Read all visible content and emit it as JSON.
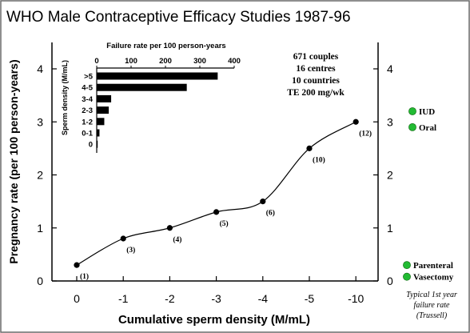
{
  "chart_data": {
    "title": "WHO Male Contraceptive Efficacy Studies 1987-96",
    "main": {
      "type": "line",
      "xlabel": "Cumulative sperm density (M/mL)",
      "ylabel": "Pregnancy rate (per 100 person-years)",
      "x_ticks": [
        "0",
        "-1",
        "-2",
        "-3",
        "-4",
        "-5",
        "-10"
      ],
      "ylim": [
        0,
        4
      ],
      "y_ticks": [
        0,
        1,
        2,
        3,
        4
      ],
      "right_y_ticks": [
        0,
        1,
        2,
        3,
        4
      ],
      "points": [
        {
          "x": "0",
          "y": 0.3,
          "n": "(1)"
        },
        {
          "x": "-1",
          "y": 0.8,
          "n": "(3)"
        },
        {
          "x": "-2",
          "y": 1.0,
          "n": "(4)"
        },
        {
          "x": "-3",
          "y": 1.3,
          "n": "(5)"
        },
        {
          "x": "-4",
          "y": 1.5,
          "n": "(6)"
        },
        {
          "x": "-5",
          "y": 2.5,
          "n": "(10)"
        },
        {
          "x": "-10",
          "y": 3.0,
          "n": "(12)"
        }
      ]
    },
    "inset": {
      "type": "bar",
      "orientation": "horizontal",
      "title": "Failure rate per 100 person-years",
      "ylabel": "Sperm density (M/mL)",
      "xlim": [
        0,
        400
      ],
      "x_ticks": [
        0,
        100,
        200,
        300,
        400
      ],
      "categories": [
        ">5",
        "4-5",
        "3-4",
        "2-3",
        "1-2",
        "0-1",
        "0"
      ],
      "values": [
        352,
        262,
        42,
        35,
        22,
        8,
        0
      ]
    },
    "annotation": [
      "671 couples",
      "16 centres",
      "10 countries",
      "TE 200 mg/wk"
    ],
    "methods": [
      {
        "label": "IUD",
        "y": 3.2,
        "color": "#22bb33"
      },
      {
        "label": "Oral",
        "y": 2.9,
        "color": "#22bb33"
      },
      {
        "label": "Parenteral",
        "y": 0.3,
        "color": "#22bb33"
      },
      {
        "label": "Vasectomy",
        "y": 0.08,
        "color": "#22bb33"
      }
    ],
    "right_note": [
      "Typical 1st year",
      "failure rate",
      "(Trussell)"
    ]
  }
}
